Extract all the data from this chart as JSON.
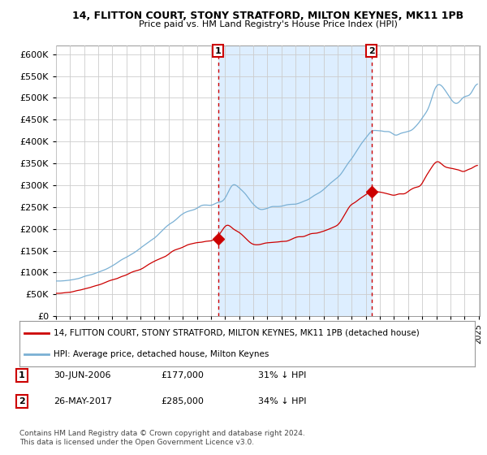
{
  "title1": "14, FLITTON COURT, STONY STRATFORD, MILTON KEYNES, MK11 1PB",
  "title2": "Price paid vs. HM Land Registry's House Price Index (HPI)",
  "legend_red": "14, FLITTON COURT, STONY STRATFORD, MILTON KEYNES, MK11 1PB (detached house)",
  "legend_blue": "HPI: Average price, detached house, Milton Keynes",
  "annotation1_date": "30-JUN-2006",
  "annotation1_price": "£177,000",
  "annotation1_hpi": "31% ↓ HPI",
  "annotation1_year": 2006.5,
  "annotation1_value": 177000,
  "annotation2_date": "26-MAY-2017",
  "annotation2_price": "£285,000",
  "annotation2_hpi": "34% ↓ HPI",
  "annotation2_year": 2017.4,
  "annotation2_value": 285000,
  "copyright": "Contains HM Land Registry data © Crown copyright and database right 2024.\nThis data is licensed under the Open Government Licence v3.0.",
  "ylim": [
    0,
    620000
  ],
  "yticks": [
    0,
    50000,
    100000,
    150000,
    200000,
    250000,
    300000,
    350000,
    400000,
    450000,
    500000,
    550000,
    600000
  ],
  "plot_bg": "#ffffff",
  "chart_bg": "#ffffff",
  "grid_color": "#cccccc",
  "red_color": "#cc0000",
  "blue_color": "#7ab0d4",
  "shade_color": "#ddeeff",
  "start_year": 1995,
  "end_year": 2025
}
